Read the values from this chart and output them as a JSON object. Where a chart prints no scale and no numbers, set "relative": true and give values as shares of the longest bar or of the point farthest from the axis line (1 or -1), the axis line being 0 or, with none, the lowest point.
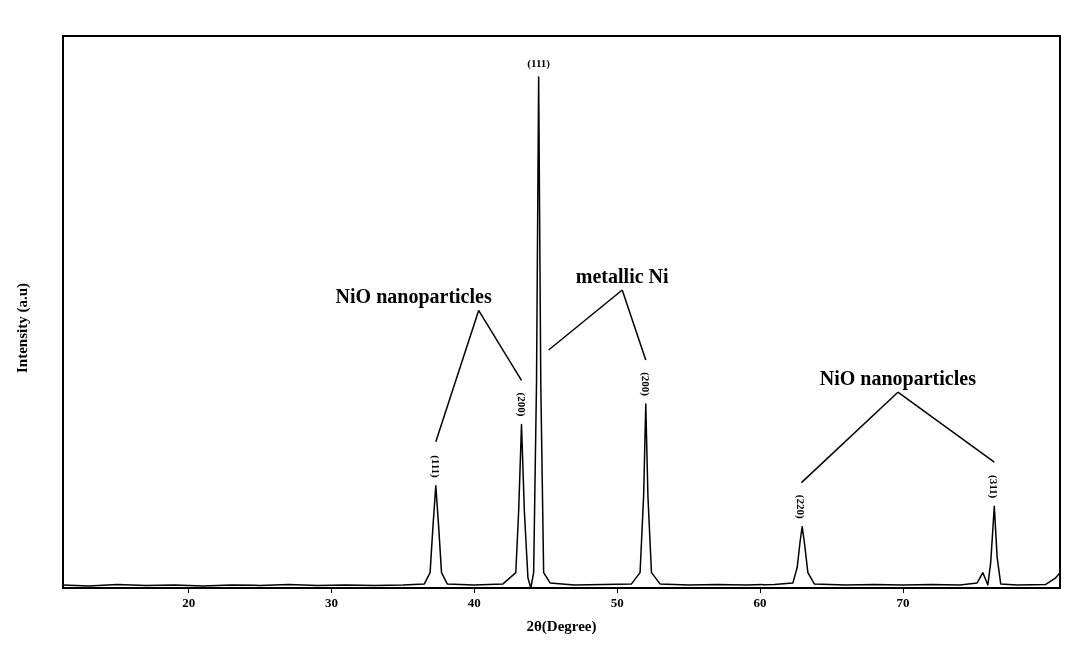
{
  "chart_data": {
    "type": "line",
    "xlabel": "2θ(Degree)",
    "ylabel": "Intensity (a.u)",
    "relative": true,
    "grid": false,
    "marker": "none",
    "line_style": "solid",
    "xlim": [
      11.2,
      81
    ],
    "xticks": [
      20,
      30,
      40,
      50,
      60,
      70
    ],
    "x": [
      11.2,
      13,
      15,
      17,
      19,
      21,
      23,
      25,
      27,
      29,
      31,
      33,
      35,
      36.5,
      36.9,
      37.1,
      37.3,
      37.5,
      37.7,
      38.1,
      40,
      42,
      42.9,
      43.1,
      43.3,
      43.5,
      43.75,
      43.95,
      44.15,
      44.35,
      44.5,
      44.65,
      44.85,
      45.3,
      47,
      49,
      51,
      51.6,
      51.85,
      52.0,
      52.15,
      52.4,
      53,
      55,
      57,
      59,
      61,
      62.3,
      62.6,
      62.8,
      62.95,
      63.1,
      63.35,
      63.8,
      66,
      68,
      70,
      72,
      74,
      75.2,
      75.6,
      75.95,
      76.15,
      76.4,
      76.6,
      76.85,
      78,
      80,
      80.7,
      81
    ],
    "series": [
      {
        "color": "#000000",
        "values": [
          0.006,
          0.004,
          0.007,
          0.005,
          0.006,
          0.004,
          0.006,
          0.005,
          0.007,
          0.005,
          0.006,
          0.005,
          0.006,
          0.008,
          0.03,
          0.12,
          0.2,
          0.12,
          0.03,
          0.008,
          0.006,
          0.008,
          0.03,
          0.15,
          0.32,
          0.15,
          0.02,
          0.0,
          0.03,
          0.4,
          1.0,
          0.4,
          0.03,
          0.01,
          0.006,
          0.007,
          0.008,
          0.03,
          0.18,
          0.36,
          0.18,
          0.03,
          0.008,
          0.006,
          0.007,
          0.006,
          0.007,
          0.01,
          0.04,
          0.09,
          0.12,
          0.09,
          0.03,
          0.008,
          0.006,
          0.007,
          0.006,
          0.007,
          0.006,
          0.01,
          0.03,
          0.006,
          0.05,
          0.16,
          0.06,
          0.008,
          0.006,
          0.007,
          0.02,
          0.03
        ]
      }
    ],
    "annotations": [
      "NiO nanoparticles",
      {
        "text": "(111)",
        "x": 37.3,
        "y": 0.2
      },
      {
        "text": "(200)",
        "x": 43.3,
        "y": 0.32
      },
      "metallic Ni",
      {
        "text": "(111)",
        "x": 44.5,
        "y": 1.0
      },
      {
        "text": "(200)",
        "x": 52.0,
        "y": 0.36
      },
      "NiO nanoparticles",
      {
        "text": "(220)",
        "x": 62.9,
        "y": 0.12
      },
      {
        "text": "(311)",
        "x": 76.4,
        "y": 0.16
      }
    ]
  }
}
